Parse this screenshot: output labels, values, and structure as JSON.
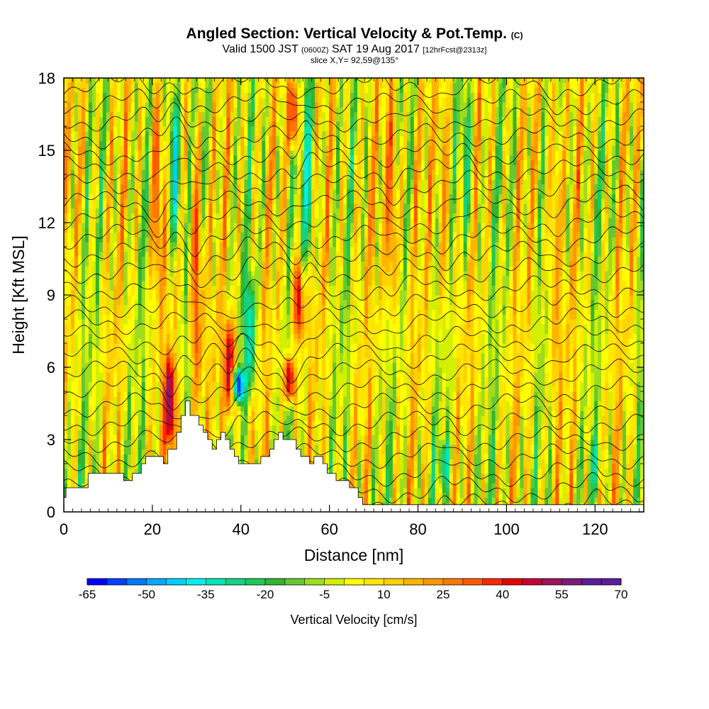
{
  "header": {
    "title_main": "Angled Section: Vertical Velocity & Pot.Temp.",
    "title_unit": "(C)",
    "valid_prefix": "Valid 1500 JST",
    "valid_utc": "(0600Z)",
    "valid_date": "SAT 19 Aug 2017",
    "valid_fcst": "[12hrFcst@2313z]",
    "slice": "slice X,Y= 92,59@135°"
  },
  "colors": {
    "palette": [
      "#0000ff",
      "#0040ff",
      "#0078ff",
      "#00a8ff",
      "#00d0ff",
      "#00f0f0",
      "#00e6b4",
      "#14d282",
      "#1ec85a",
      "#32b432",
      "#64c832",
      "#a0dc1e",
      "#d2f000",
      "#ffff00",
      "#ffe600",
      "#ffd200",
      "#ffb400",
      "#ff9600",
      "#ff7800",
      "#ff5a00",
      "#ff2800",
      "#e60000",
      "#c80032",
      "#a0145a",
      "#781e78",
      "#5a1e96"
    ],
    "background_level": "#a0dc1e",
    "terrain": "#ffffff"
  },
  "chart_data": {
    "type": "heatmap",
    "xlabel": "Distance [nm]",
    "ylabel": "Height [Kft MSL]",
    "xlim": [
      0,
      131
    ],
    "ylim": [
      0,
      18
    ],
    "xticks": [
      0,
      20,
      40,
      60,
      80,
      100,
      120
    ],
    "yticks": [
      0,
      3,
      6,
      9,
      12,
      15,
      18
    ],
    "field": "Vertical Velocity",
    "contour_field": "Pot.Temp. (C)",
    "colorbar": {
      "label": "Vertical Velocity [cm/s]",
      "min": -65,
      "max": 70,
      "step": 5,
      "ticks": [
        -65,
        -50,
        -35,
        -20,
        -5,
        10,
        25,
        40,
        55,
        70
      ]
    },
    "velocity_features": [
      {
        "x": 24,
        "z_from": 2.5,
        "z_to": 6.5,
        "value": 55
      },
      {
        "x": 21,
        "z_from": 9,
        "z_to": 18,
        "value": 30
      },
      {
        "x": 25,
        "z_from": 11,
        "z_to": 18,
        "value": -40
      },
      {
        "x": 30,
        "z_from": 4,
        "z_to": 15,
        "value": 35
      },
      {
        "x": 37.5,
        "z_from": 4,
        "z_to": 8,
        "value": 50
      },
      {
        "x": 39.5,
        "z_from": 4.5,
        "z_to": 6,
        "value": -60
      },
      {
        "x": 42,
        "z_from": 5,
        "z_to": 10,
        "value": -35
      },
      {
        "x": 51,
        "z_from": 4.5,
        "z_to": 6.5,
        "value": 50
      },
      {
        "x": 53,
        "z_from": 7,
        "z_to": 10.5,
        "value": 45
      },
      {
        "x": 52,
        "z_from": 15,
        "z_to": 18,
        "value": 40
      },
      {
        "x": 55,
        "z_from": 10,
        "z_to": 18,
        "value": -30
      },
      {
        "x": 74,
        "z_from": 8,
        "z_to": 18,
        "value": 30
      },
      {
        "x": 86,
        "z_from": 8,
        "z_to": 18,
        "value": 20
      },
      {
        "x": 91,
        "z_from": 11,
        "z_to": 18,
        "value": -25
      },
      {
        "x": 111,
        "z_from": 4,
        "z_to": 18,
        "value": 20
      },
      {
        "x": 86,
        "z_from": 1,
        "z_to": 3,
        "value": -30
      },
      {
        "x": 120,
        "z_from": 1,
        "z_to": 3,
        "value": -25
      }
    ],
    "terrain_profile": {
      "x": [
        0,
        0.5,
        0.5,
        5.5,
        5.5,
        8.5,
        8.5,
        13.5,
        13.5,
        15.5,
        15.5,
        17.5,
        17.5,
        18.5,
        18.5,
        22.5,
        22.5,
        23.5,
        23.5,
        25.5,
        25.5,
        26.5,
        26.5,
        27.5,
        27.5,
        28.5,
        28.5,
        30.5,
        30.5,
        31.5,
        31.5,
        32.5,
        32.5,
        33.5,
        33.5,
        34.5,
        34.5,
        35.5,
        35.5,
        36.5,
        36.5,
        37.5,
        37.5,
        38.5,
        38.5,
        39.5,
        39.5,
        41.5,
        41.5,
        44.5,
        44.5,
        46.5,
        46.5,
        47.5,
        47.5,
        48.5,
        48.5,
        49.5,
        49.5,
        52.5,
        52.5,
        53.5,
        53.5,
        55.5,
        55.5,
        56.5,
        56.5,
        58.5,
        58.5,
        59.5,
        59.5,
        61.5,
        61.5,
        64.5,
        64.5,
        66.5,
        66.5,
        67.5,
        67.5,
        70.5,
        70.5,
        131
      ],
      "z": [
        0.6,
        0.6,
        1.0,
        1.0,
        1.6,
        1.6,
        1.6,
        1.6,
        1.3,
        1.3,
        1.6,
        1.6,
        2.0,
        2.0,
        2.3,
        2.3,
        2.0,
        2.0,
        2.6,
        2.6,
        3.3,
        3.3,
        4.0,
        4.0,
        4.6,
        4.6,
        4.0,
        4.0,
        3.6,
        3.6,
        3.3,
        3.3,
        3.0,
        3.0,
        2.6,
        2.6,
        3.0,
        3.0,
        3.3,
        3.3,
        3.0,
        3.0,
        2.6,
        2.6,
        2.3,
        2.3,
        2.0,
        2.0,
        2.0,
        2.0,
        2.3,
        2.3,
        2.6,
        2.6,
        3.0,
        3.0,
        3.3,
        3.3,
        3.0,
        3.0,
        2.6,
        2.6,
        2.3,
        2.3,
        2.0,
        2.0,
        2.3,
        2.3,
        2.0,
        2.0,
        1.6,
        1.6,
        1.3,
        1.3,
        1.0,
        1.0,
        0.6,
        0.6,
        0.3,
        0.3,
        0.3,
        0.3
      ]
    }
  }
}
